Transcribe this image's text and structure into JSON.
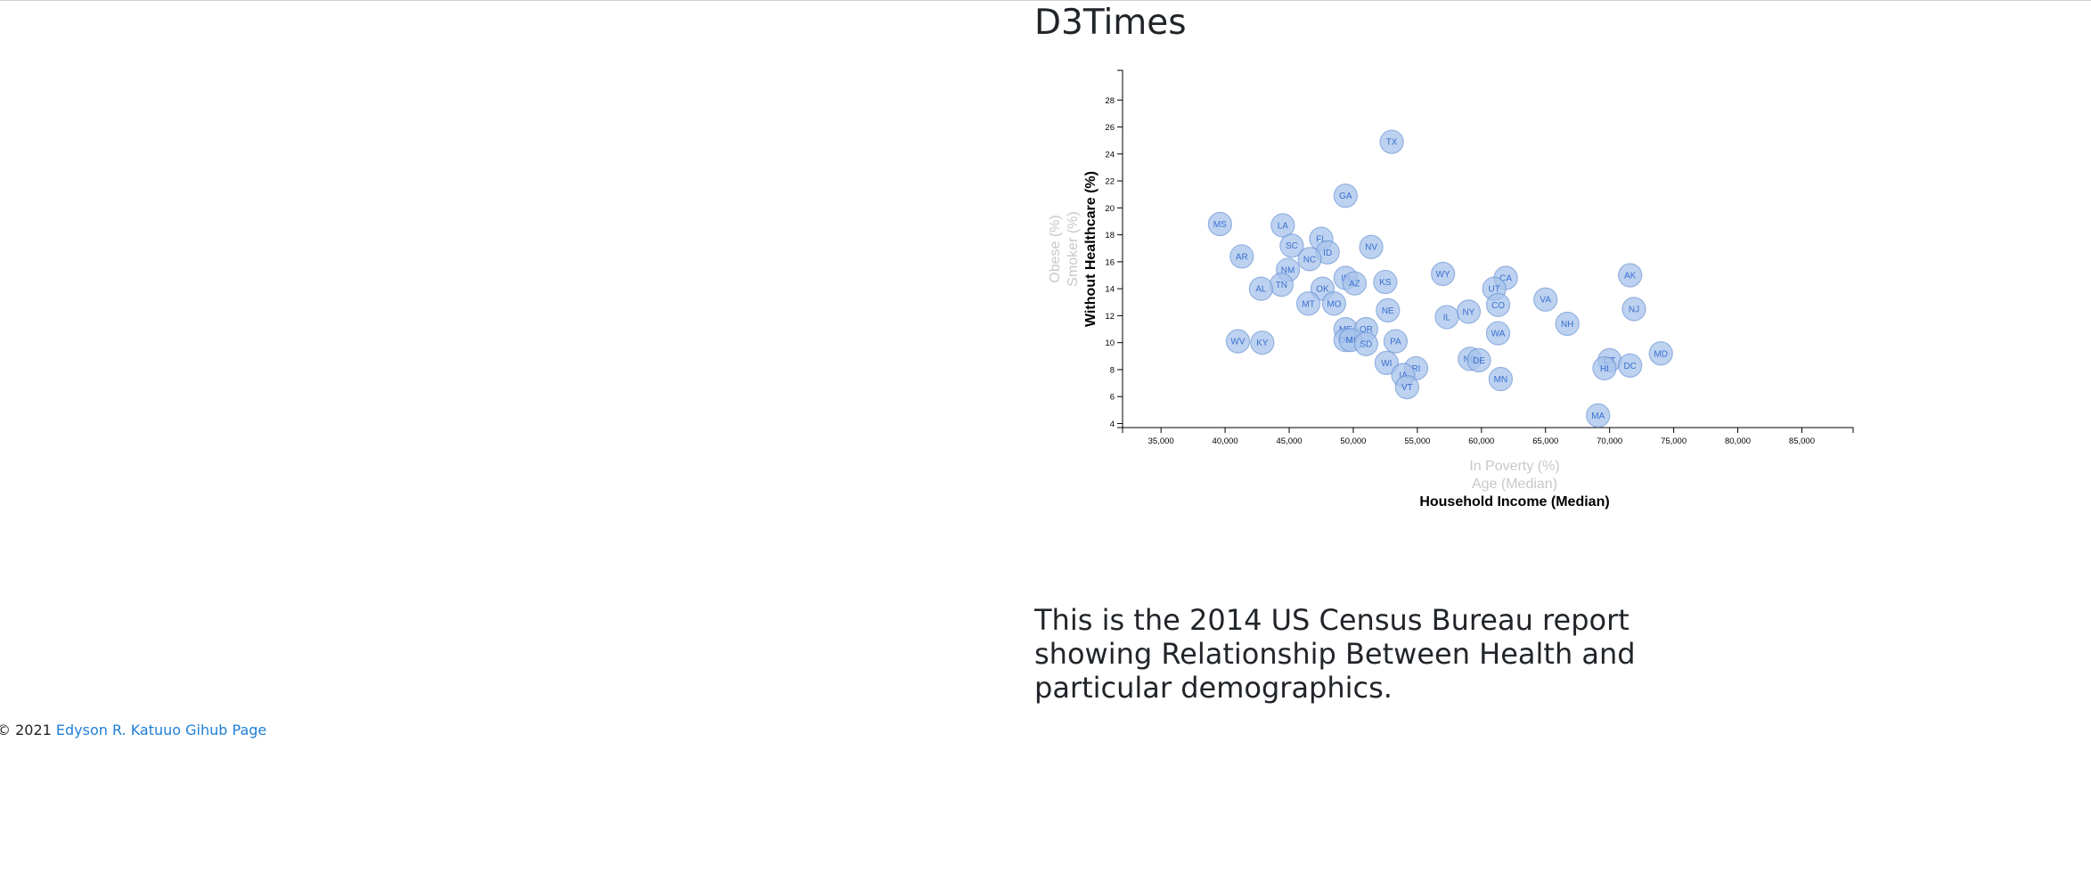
{
  "page": {
    "title": "D3Times",
    "description": "This is the 2014 US Census Bureau report showing Relationship Between Health and particular demographics.",
    "footer_copyright": "© 2021",
    "footer_link_text": "Edyson R. Katuuo Gihub Page"
  },
  "chart_data": {
    "type": "scatter",
    "x_labels": [
      {
        "text": "In Poverty (%)",
        "active": false
      },
      {
        "text": "Age (Median)",
        "active": false
      },
      {
        "text": "Household Income (Median)",
        "active": true
      }
    ],
    "y_labels": [
      {
        "text": "Obese (%)",
        "active": false
      },
      {
        "text": "Smoker (%)",
        "active": false
      },
      {
        "text": "Without Healthcare (%)",
        "active": true
      }
    ],
    "xlim": [
      32000,
      89000
    ],
    "ylim": [
      3.7,
      30.2
    ],
    "x_ticks": [
      35000,
      40000,
      45000,
      50000,
      55000,
      60000,
      65000,
      70000,
      75000,
      80000,
      85000
    ],
    "x_tick_labels": [
      "35,000",
      "40,000",
      "45,000",
      "50,000",
      "55,000",
      "60,000",
      "65,000",
      "70,000",
      "75,000",
      "80,000",
      "85,000"
    ],
    "y_ticks": [
      4,
      6,
      8,
      10,
      12,
      14,
      16,
      18,
      20,
      22,
      24,
      26,
      28
    ],
    "y_tick_labels": [
      "4",
      "6",
      "8",
      "10",
      "12",
      "14",
      "16",
      "18",
      "20",
      "22",
      "24",
      "26",
      "28"
    ],
    "points": [
      {
        "abbr": "TX",
        "x": 53000,
        "y": 24.9
      },
      {
        "abbr": "GA",
        "x": 49400,
        "y": 20.9
      },
      {
        "abbr": "MS",
        "x": 39600,
        "y": 18.8
      },
      {
        "abbr": "LA",
        "x": 44500,
        "y": 18.7
      },
      {
        "abbr": "FL",
        "x": 47500,
        "y": 17.7
      },
      {
        "abbr": "SC",
        "x": 45200,
        "y": 17.2
      },
      {
        "abbr": "NV",
        "x": 51400,
        "y": 17.1
      },
      {
        "abbr": "ID",
        "x": 48000,
        "y": 16.7
      },
      {
        "abbr": "AR",
        "x": 41300,
        "y": 16.4
      },
      {
        "abbr": "NC",
        "x": 46600,
        "y": 16.2
      },
      {
        "abbr": "NM",
        "x": 44900,
        "y": 15.4
      },
      {
        "abbr": "WY",
        "x": 57000,
        "y": 15.1
      },
      {
        "abbr": "AK",
        "x": 71600,
        "y": 15.0
      },
      {
        "abbr": "CA",
        "x": 61900,
        "y": 14.8
      },
      {
        "abbr": "IN",
        "x": 49400,
        "y": 14.8
      },
      {
        "abbr": "AZ",
        "x": 50100,
        "y": 14.4
      },
      {
        "abbr": "KS",
        "x": 52500,
        "y": 14.5
      },
      {
        "abbr": "TN",
        "x": 44400,
        "y": 14.3
      },
      {
        "abbr": "AL",
        "x": 42800,
        "y": 14.0
      },
      {
        "abbr": "OK",
        "x": 47600,
        "y": 14.0
      },
      {
        "abbr": "UT",
        "x": 61000,
        "y": 14.0
      },
      {
        "abbr": "VA",
        "x": 65000,
        "y": 13.2
      },
      {
        "abbr": "MT",
        "x": 46500,
        "y": 12.9
      },
      {
        "abbr": "MO",
        "x": 48500,
        "y": 12.9
      },
      {
        "abbr": "CO",
        "x": 61300,
        "y": 12.8
      },
      {
        "abbr": "NJ",
        "x": 71900,
        "y": 12.5
      },
      {
        "abbr": "NE",
        "x": 52700,
        "y": 12.4
      },
      {
        "abbr": "NY",
        "x": 59000,
        "y": 12.3
      },
      {
        "abbr": "IL",
        "x": 57300,
        "y": 11.9
      },
      {
        "abbr": "NH",
        "x": 66700,
        "y": 11.4
      },
      {
        "abbr": "ME",
        "x": 49400,
        "y": 11.0
      },
      {
        "abbr": "OR",
        "x": 51000,
        "y": 11.0
      },
      {
        "abbr": "WA",
        "x": 61300,
        "y": 10.7
      },
      {
        "abbr": "OH",
        "x": 49400,
        "y": 10.2
      },
      {
        "abbr": "MI",
        "x": 49800,
        "y": 10.2
      },
      {
        "abbr": "PA",
        "x": 53300,
        "y": 10.1
      },
      {
        "abbr": "WV",
        "x": 41000,
        "y": 10.1
      },
      {
        "abbr": "KY",
        "x": 42900,
        "y": 10.0
      },
      {
        "abbr": "SD",
        "x": 51000,
        "y": 9.9
      },
      {
        "abbr": "MD",
        "x": 74000,
        "y": 9.2
      },
      {
        "abbr": "ND",
        "x": 59100,
        "y": 8.8
      },
      {
        "abbr": "DE",
        "x": 59800,
        "y": 8.7
      },
      {
        "abbr": "CT",
        "x": 70000,
        "y": 8.7
      },
      {
        "abbr": "WI",
        "x": 52600,
        "y": 8.5
      },
      {
        "abbr": "DC",
        "x": 71600,
        "y": 8.3
      },
      {
        "abbr": "HI",
        "x": 69600,
        "y": 8.1
      },
      {
        "abbr": "RI",
        "x": 54900,
        "y": 8.1
      },
      {
        "abbr": "IA",
        "x": 53900,
        "y": 7.6
      },
      {
        "abbr": "MN",
        "x": 61500,
        "y": 7.3
      },
      {
        "abbr": "VT",
        "x": 54200,
        "y": 6.7
      },
      {
        "abbr": "MA",
        "x": 69100,
        "y": 4.6
      }
    ]
  }
}
